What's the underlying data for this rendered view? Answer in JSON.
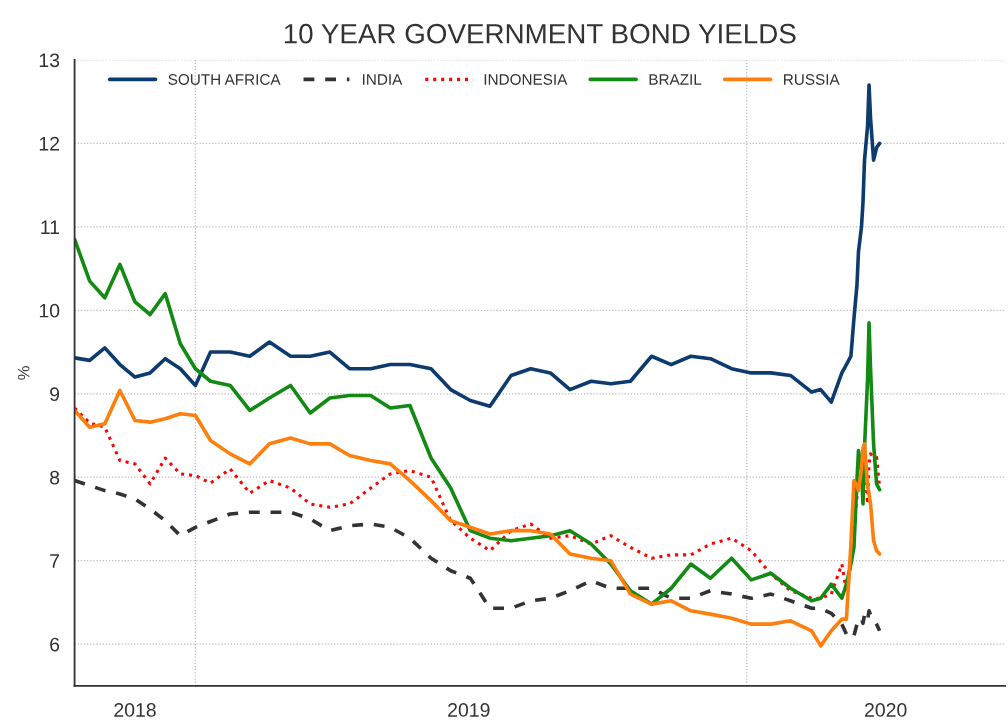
{
  "chart_data": {
    "type": "line",
    "title": "10 YEAR GOVERNMENT BOND YIELDS",
    "ylabel": "%",
    "x": [
      "2018-10-13",
      "2018-10-23",
      "2018-11-02",
      "2018-11-12",
      "2018-11-22",
      "2018-12-02",
      "2018-12-12",
      "2018-12-22",
      "2019-01-01",
      "2019-01-11",
      "2019-01-24",
      "2019-02-06",
      "2019-02-19",
      "2019-03-05",
      "2019-03-18",
      "2019-03-31",
      "2019-04-13",
      "2019-04-27",
      "2019-05-10",
      "2019-05-23",
      "2019-06-06",
      "2019-06-19",
      "2019-07-02",
      "2019-07-15",
      "2019-07-29",
      "2019-08-11",
      "2019-08-24",
      "2019-09-06",
      "2019-09-20",
      "2019-10-03",
      "2019-10-16",
      "2019-10-30",
      "2019-11-12",
      "2019-11-25",
      "2019-12-08",
      "2019-12-22",
      "2020-01-04",
      "2020-01-17",
      "2020-01-30",
      "2020-02-13",
      "2020-02-19",
      "2020-02-26",
      "2020-03-04",
      "2020-03-07",
      "2020-03-10",
      "2020-03-12",
      "2020-03-14",
      "2020-03-15",
      "2020-03-17",
      "2020-03-18",
      "2020-03-19",
      "2020-03-21",
      "2020-03-22",
      "2020-03-23",
      "2020-03-25",
      "2020-03-27",
      "2020-03-29"
    ],
    "series": [
      {
        "name": "SOUTH AFRICA",
        "color": "#0d3b6e",
        "line_style": "solid",
        "values": [
          9.43,
          9.4,
          9.55,
          9.35,
          9.2,
          9.25,
          9.42,
          9.3,
          9.1,
          9.5,
          9.5,
          9.45,
          9.62,
          9.45,
          9.45,
          9.5,
          9.3,
          9.3,
          9.35,
          9.35,
          9.3,
          9.05,
          8.92,
          8.85,
          9.22,
          9.3,
          9.25,
          9.05,
          9.15,
          9.12,
          9.15,
          9.45,
          9.35,
          9.45,
          9.42,
          9.3,
          9.25,
          9.25,
          9.22,
          9.02,
          9.05,
          8.9,
          9.25,
          9.35,
          9.45,
          9.9,
          10.3,
          10.7,
          11.0,
          11.3,
          11.8,
          12.2,
          12.7,
          12.3,
          11.8,
          11.95,
          12.0
        ]
      },
      {
        "name": "INDIA",
        "color": "#333333",
        "line_style": "dashed",
        "values": [
          7.96,
          7.9,
          7.84,
          7.8,
          7.74,
          7.62,
          7.48,
          7.3,
          7.4,
          7.47,
          7.56,
          7.58,
          7.58,
          7.58,
          7.5,
          7.36,
          7.42,
          7.44,
          7.4,
          7.27,
          7.03,
          6.88,
          6.79,
          6.43,
          6.43,
          6.52,
          6.55,
          6.64,
          6.76,
          6.67,
          6.67,
          6.67,
          6.55,
          6.55,
          6.64,
          6.6,
          6.55,
          6.6,
          6.52,
          6.43,
          6.43,
          6.37,
          6.24,
          6.12,
          6.07,
          6.1,
          6.24,
          6.3,
          6.31,
          6.25,
          6.35,
          6.28,
          6.4,
          6.35,
          6.3,
          6.24,
          6.16
        ]
      },
      {
        "name": "INDONESIA",
        "color": "#ff0000",
        "line_style": "dotted",
        "values": [
          8.83,
          8.65,
          8.6,
          8.2,
          8.16,
          7.92,
          8.23,
          8.04,
          8.02,
          7.93,
          8.1,
          7.81,
          7.96,
          7.87,
          7.68,
          7.64,
          7.68,
          7.87,
          8.04,
          8.08,
          8.0,
          7.48,
          7.27,
          7.12,
          7.36,
          7.44,
          7.27,
          7.3,
          7.2,
          7.3,
          7.16,
          7.03,
          7.07,
          7.07,
          7.2,
          7.27,
          7.12,
          6.84,
          6.64,
          6.55,
          6.55,
          6.6,
          6.96,
          6.64,
          6.96,
          7.36,
          7.76,
          7.99,
          7.92,
          8.08,
          8.24,
          7.68,
          8.16,
          8.28,
          8.24,
          8.24,
          7.88
        ]
      },
      {
        "name": "BRAZIL",
        "color": "#138a13",
        "line_style": "solid",
        "values": [
          10.85,
          10.35,
          10.15,
          10.55,
          10.1,
          9.95,
          10.2,
          9.6,
          9.3,
          9.15,
          9.1,
          8.8,
          8.95,
          9.1,
          8.77,
          8.95,
          8.98,
          8.98,
          8.83,
          8.86,
          8.23,
          7.87,
          7.36,
          7.27,
          7.24,
          7.27,
          7.3,
          7.36,
          7.2,
          6.96,
          6.64,
          6.48,
          6.67,
          6.96,
          6.79,
          7.03,
          6.77,
          6.85,
          6.67,
          6.52,
          6.55,
          6.72,
          6.55,
          6.72,
          6.96,
          7.16,
          7.96,
          8.32,
          8.08,
          7.68,
          8.36,
          9.16,
          9.85,
          9.3,
          8.4,
          7.92,
          7.85
        ]
      },
      {
        "name": "RUSSIA",
        "color": "#ff7f0e",
        "line_style": "solid",
        "values": [
          8.8,
          8.6,
          8.64,
          9.04,
          8.68,
          8.66,
          8.7,
          8.76,
          8.74,
          8.44,
          8.28,
          8.16,
          8.4,
          8.47,
          8.4,
          8.4,
          8.26,
          8.2,
          8.16,
          7.96,
          7.72,
          7.48,
          7.4,
          7.32,
          7.36,
          7.36,
          7.32,
          7.08,
          7.03,
          7.0,
          6.6,
          6.48,
          6.52,
          6.4,
          6.36,
          6.31,
          6.24,
          6.24,
          6.28,
          6.16,
          5.98,
          6.16,
          6.3,
          6.3,
          7.2,
          7.96,
          7.9,
          7.84,
          8.1,
          8.35,
          8.4,
          7.9,
          7.8,
          7.68,
          7.24,
          7.12,
          7.08
        ]
      }
    ],
    "xlim": [
      "2018-10-13",
      "2020-06-20"
    ],
    "xticks": [
      {
        "value": "2018-11-22",
        "label": "2018"
      },
      {
        "value": "2019-01-01",
        "label": null
      },
      {
        "value": "2019-07-01",
        "label": "2019"
      },
      {
        "value": "2020-01-01",
        "label": null
      },
      {
        "value": "2020-04-02",
        "label": "2020"
      }
    ],
    "ylim": [
      5.5,
      13
    ],
    "yticks": [
      6,
      7,
      8,
      9,
      10,
      11,
      12,
      13
    ],
    "grid": true,
    "legend": "top"
  }
}
